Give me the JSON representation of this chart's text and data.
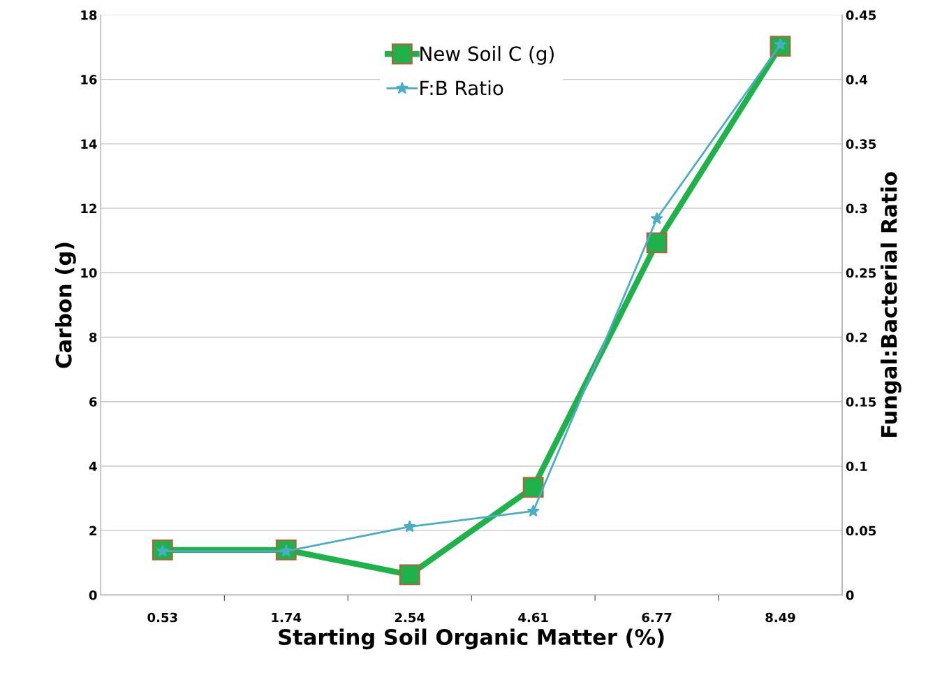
{
  "chart_data": {
    "type": "line",
    "xlabel": "Starting Soil Organic Matter (%)",
    "ylabel": "Carbon (g)",
    "y2label": "Fungal:Bacterial Ratio",
    "categories": [
      "0.53",
      "1.74",
      "2.54",
      "4.61",
      "6.77",
      "8.49"
    ],
    "series": [
      {
        "name": "New Soil C (g)",
        "color": "#1fb24a",
        "marker": "square",
        "values": [
          1.4,
          1.4,
          0.63,
          3.34,
          10.93,
          17.03
        ]
      },
      {
        "name": "F:B Ratio",
        "color": "#4bacc6",
        "marker": "star",
        "axis": "y2",
        "values": [
          0.034,
          0.034,
          0.053,
          0.065,
          0.292,
          0.427
        ]
      }
    ],
    "ylim": [
      0,
      18
    ],
    "yticks": [
      0,
      2,
      4,
      6,
      8,
      10,
      12,
      14,
      16,
      18
    ],
    "y2lim": [
      0,
      0.45
    ],
    "y2ticks": [
      0,
      0.05,
      0.1,
      0.15,
      0.2,
      0.25,
      0.3,
      0.35,
      0.4,
      0.45
    ],
    "grid": "y",
    "legend": "top",
    "line_style": "solid"
  }
}
